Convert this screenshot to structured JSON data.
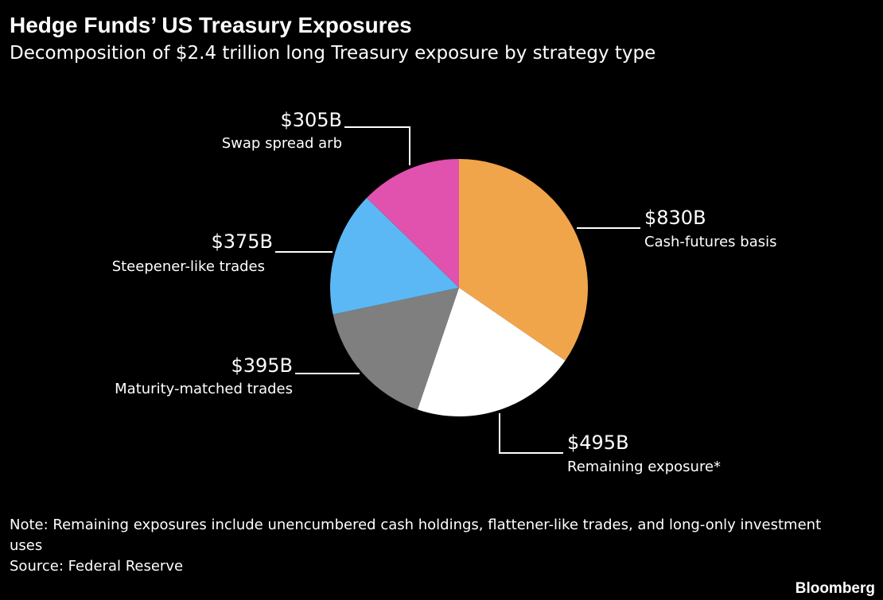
{
  "chart_data": {
    "type": "pie",
    "title": "Hedge Funds’ US Treasury Exposures",
    "subtitle": "Decomposition of $2.4 trillion long Treasury exposure by strategy type",
    "categories": [
      "Cash-futures basis",
      "Remaining exposure*",
      "Maturity-matched trades",
      "Steepener-like trades",
      "Swap spread arb"
    ],
    "values": [
      830,
      495,
      395,
      375,
      305
    ],
    "value_labels": [
      "$830B",
      "$495B",
      "$395B",
      "$375B",
      "$305B"
    ],
    "colors": [
      "#f0a54a",
      "#ffffff",
      "#7f7f7f",
      "#5bb8f5",
      "#e052ad"
    ],
    "note": "Note: Remaining exposures include unencumbered cash holdings, flattener-like trades, and long-only investment uses",
    "source": "Source: Federal Reserve",
    "logo": "Bloomberg"
  }
}
